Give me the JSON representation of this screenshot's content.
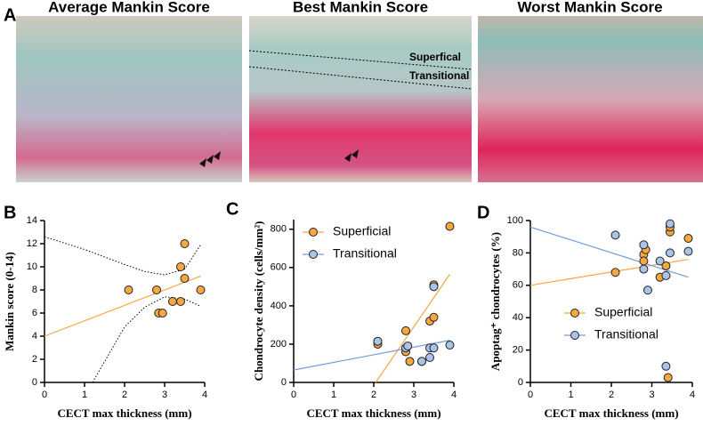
{
  "figure": {
    "panel_a": {
      "label": "A",
      "images": [
        {
          "title": "Average Mankin Score"
        },
        {
          "title": "Best Mankin Score"
        },
        {
          "title": "Worst Mankin Score"
        }
      ],
      "annotations": [
        "Superfical",
        "Transitional"
      ]
    }
  },
  "chart_data": [
    {
      "type": "scatter",
      "panel_label": "B",
      "xlabel": "CECT max thickness (mm)",
      "ylabel": "Mankin score (0-14)",
      "xlim": [
        0,
        4
      ],
      "xticks": [
        0,
        1,
        2,
        3,
        4
      ],
      "ylim": [
        0,
        14
      ],
      "yticks": [
        0,
        2,
        4,
        6,
        8,
        10,
        12,
        14
      ],
      "series": [
        {
          "color": "#f5a742",
          "line_color": "#f5a742",
          "x": [
            2.1,
            2.8,
            2.85,
            2.95,
            3.2,
            3.4,
            3.4,
            3.5,
            3.5,
            3.9
          ],
          "values": [
            8,
            8,
            6,
            6,
            7,
            7,
            10,
            12,
            9,
            8
          ],
          "fit": {
            "x": [
              0,
              3.9
            ],
            "y": [
              4,
              9.2
            ]
          }
        }
      ],
      "ci_upper": {
        "x": [
          0,
          1,
          2,
          2.5,
          3,
          3.5,
          3.9
        ],
        "y": [
          12.6,
          11.5,
          10.2,
          9.6,
          9.3,
          9.8,
          11.9
        ]
      },
      "ci_lower": {
        "x": [
          1.2,
          2,
          2.5,
          3,
          3.5,
          3.9
        ],
        "y": [
          0,
          4.8,
          6.5,
          7.4,
          7.2,
          6.6
        ]
      }
    },
    {
      "type": "scatter",
      "panel_label": "C",
      "xlabel": "CECT max thickness (mm)",
      "ylabel": "Chondrocyte density (cells/mm²)",
      "xlim": [
        0,
        4
      ],
      "xticks": [
        0,
        1,
        2,
        3,
        4
      ],
      "ylim": [
        0,
        850
      ],
      "yticks": [
        0,
        200,
        400,
        600,
        800
      ],
      "legend": "upper left",
      "series": [
        {
          "name": "Superficial",
          "color": "#f5a742",
          "line_color": "#f5a742",
          "x": [
            2.1,
            2.8,
            2.8,
            2.9,
            3.2,
            3.4,
            3.5,
            3.5,
            3.9
          ],
          "values": [
            200,
            270,
            160,
            110,
            110,
            320,
            340,
            510,
            815
          ],
          "fit": {
            "x": [
              2.05,
              3.9
            ],
            "y": [
              0,
              565
            ]
          }
        },
        {
          "name": "Transitional",
          "color": "#a9c4e8",
          "line_color": "#6f9fd6",
          "x": [
            2.1,
            2.8,
            2.85,
            3.2,
            3.4,
            3.4,
            3.5,
            3.5,
            3.9
          ],
          "values": [
            215,
            180,
            190,
            110,
            130,
            180,
            180,
            500,
            195
          ],
          "fit": {
            "x": [
              0,
              3.9
            ],
            "y": [
              65,
              220
            ]
          }
        }
      ]
    },
    {
      "type": "scatter",
      "panel_label": "D",
      "xlabel": "CECT max thickness (mm)",
      "ylabel": "Apoptag⁺ chondrocytes (%)",
      "xlim": [
        0,
        4
      ],
      "xticks": [
        0,
        1,
        2,
        3,
        4
      ],
      "ylim": [
        0,
        100
      ],
      "yticks": [
        0,
        20,
        40,
        60,
        80,
        100
      ],
      "legend": "lower right",
      "series": [
        {
          "name": "Superficial",
          "color": "#f5a742",
          "line_color": "#f5a742",
          "x": [
            2.1,
            2.8,
            2.85,
            2.8,
            3.2,
            3.35,
            3.4,
            3.45,
            3.45,
            3.9
          ],
          "values": [
            68,
            79,
            82,
            75,
            65,
            72,
            3,
            93,
            96,
            89
          ],
          "fit": {
            "x": [
              0,
              3.9
            ],
            "y": [
              60,
              76
            ]
          }
        },
        {
          "name": "Transitional",
          "color": "#a9c4e8",
          "line_color": "#6f9fd6",
          "x": [
            2.1,
            2.8,
            2.8,
            2.9,
            3.2,
            3.35,
            3.35,
            3.45,
            3.45,
            3.9
          ],
          "values": [
            91,
            85,
            70,
            57,
            75,
            66,
            10,
            98,
            80,
            81
          ],
          "fit": {
            "x": [
              0,
              3.9
            ],
            "y": [
              96,
              65
            ]
          }
        }
      ]
    }
  ]
}
